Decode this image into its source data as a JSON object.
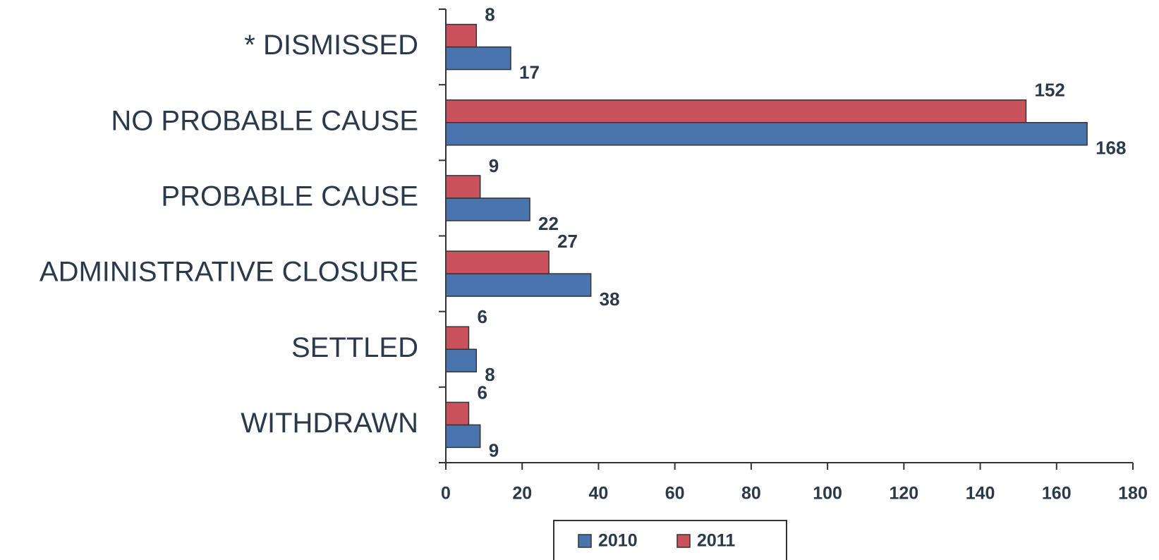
{
  "chart_data": {
    "type": "hbar",
    "categories": [
      "* DISMISSED",
      "NO PROBABLE CAUSE",
      "PROBABLE CAUSE",
      "ADMINISTRATIVE CLOSURE",
      "SETTLED",
      "WITHDRAWN"
    ],
    "series": [
      {
        "name": "2010",
        "color": "#4a74ae",
        "values": [
          17,
          168,
          22,
          38,
          8,
          9
        ]
      },
      {
        "name": "2011",
        "color": "#c9525c",
        "values": [
          8,
          152,
          9,
          27,
          6,
          6
        ]
      }
    ],
    "xlim": [
      0,
      180
    ],
    "xticks": [
      0,
      20,
      40,
      60,
      80,
      100,
      120,
      140,
      160,
      180
    ],
    "legend": "bottom"
  }
}
